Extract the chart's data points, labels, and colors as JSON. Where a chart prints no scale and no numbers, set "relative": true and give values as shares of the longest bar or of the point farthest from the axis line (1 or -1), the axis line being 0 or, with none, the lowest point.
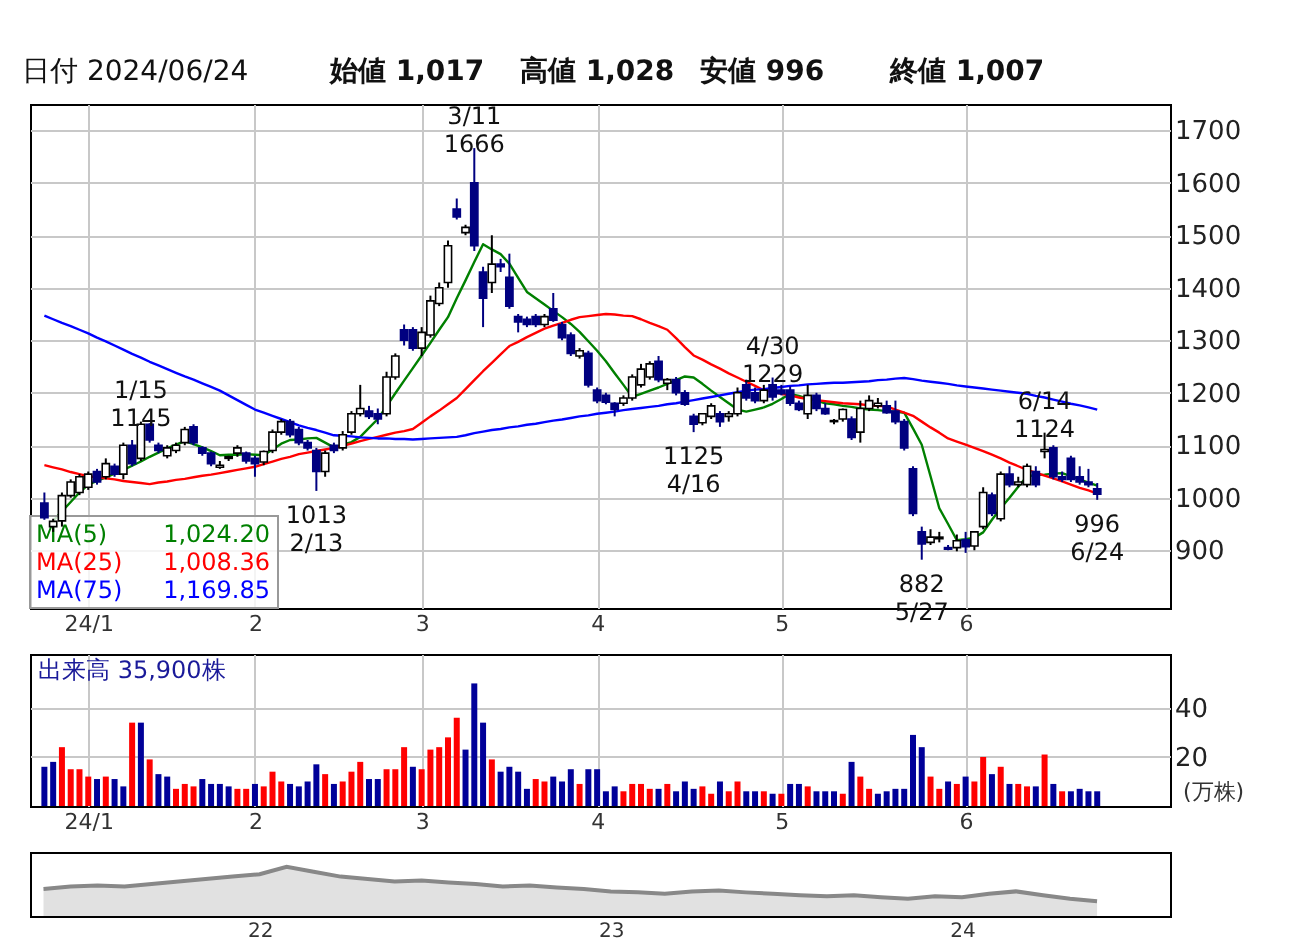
{
  "chart_data": [
    {
      "type": "candlestick",
      "title": "日付 2024/06/24",
      "categories": [
        null,
        null,
        null,
        null,
        null,
        "24/1",
        null,
        null,
        null,
        null,
        null,
        null,
        null,
        null,
        null,
        null,
        null,
        null,
        null,
        null,
        null,
        null,
        null,
        null,
        "2",
        null,
        null,
        null,
        null,
        null,
        null,
        null,
        null,
        null,
        null,
        null,
        null,
        null,
        null,
        null,
        null,
        null,
        null,
        "3",
        null,
        null,
        null,
        null,
        null,
        null,
        null,
        null,
        null,
        null,
        null,
        null,
        null,
        null,
        null,
        null,
        null,
        null,
        null,
        "4",
        null,
        null,
        null,
        null,
        null,
        null,
        null,
        null,
        null,
        null,
        null,
        null,
        null,
        null,
        null,
        null,
        null,
        null,
        null,
        null,
        "5",
        null,
        null,
        null,
        null,
        null,
        null,
        null,
        null,
        null,
        null,
        null,
        null,
        null,
        null,
        null,
        null,
        null,
        null,
        null,
        null,
        "6",
        null,
        null,
        null,
        null,
        null,
        null,
        null,
        null,
        null,
        null,
        null,
        null,
        null,
        null,
        null
      ],
      "ohlc": [
        [
          990,
          1010,
          958,
          962
        ],
        [
          945,
          960,
          935,
          955
        ],
        [
          956,
          1010,
          945,
          1004
        ],
        [
          1004,
          1035,
          1000,
          1030
        ],
        [
          1010,
          1045,
          1005,
          1040
        ],
        [
          1020,
          1050,
          1015,
          1045
        ],
        [
          1050,
          1055,
          1025,
          1030
        ],
        [
          1040,
          1075,
          1035,
          1065
        ],
        [
          1060,
          1065,
          1040,
          1045
        ],
        [
          1045,
          1105,
          1035,
          1100
        ],
        [
          1100,
          1110,
          1060,
          1065
        ],
        [
          1075,
          1145,
          1070,
          1140
        ],
        [
          1140,
          1142,
          1105,
          1110
        ],
        [
          1100,
          1105,
          1085,
          1090
        ],
        [
          1080,
          1100,
          1075,
          1095
        ],
        [
          1090,
          1105,
          1085,
          1100
        ],
        [
          1105,
          1135,
          1100,
          1130
        ],
        [
          1135,
          1140,
          1100,
          1105
        ],
        [
          1095,
          1098,
          1080,
          1085
        ],
        [
          1085,
          1088,
          1060,
          1065
        ],
        [
          1058,
          1070,
          1055,
          1062
        ],
        [
          1075,
          1080,
          1070,
          1078
        ],
        [
          1085,
          1100,
          1078,
          1095
        ],
        [
          1085,
          1088,
          1065,
          1070
        ],
        [
          1075,
          1080,
          1040,
          1065
        ],
        [
          1068,
          1090,
          1062,
          1088
        ],
        [
          1090,
          1130,
          1085,
          1125
        ],
        [
          1125,
          1150,
          1120,
          1145
        ],
        [
          1145,
          1150,
          1115,
          1120
        ],
        [
          1130,
          1135,
          1100,
          1105
        ],
        [
          1105,
          1110,
          1090,
          1095
        ],
        [
          1090,
          1095,
          1013,
          1050
        ],
        [
          1050,
          1090,
          1040,
          1085
        ],
        [
          1100,
          1105,
          1085,
          1090
        ],
        [
          1095,
          1127,
          1090,
          1120
        ],
        [
          1125,
          1165,
          1120,
          1160
        ],
        [
          1160,
          1215,
          1155,
          1170
        ],
        [
          1165,
          1175,
          1150,
          1155
        ],
        [
          1160,
          1170,
          1140,
          1150
        ],
        [
          1160,
          1240,
          1155,
          1230
        ],
        [
          1230,
          1275,
          1225,
          1270
        ],
        [
          1320,
          1330,
          1290,
          1300
        ],
        [
          1320,
          1325,
          1280,
          1285
        ],
        [
          1285,
          1325,
          1270,
          1315
        ],
        [
          1310,
          1385,
          1305,
          1375
        ],
        [
          1370,
          1410,
          1365,
          1400
        ],
        [
          1410,
          1490,
          1400,
          1480
        ],
        [
          1550,
          1570,
          1530,
          1535
        ],
        [
          1505,
          1520,
          1500,
          1515
        ],
        [
          1600,
          1666,
          1470,
          1480
        ],
        [
          1430,
          1440,
          1325,
          1380
        ],
        [
          1410,
          1500,
          1390,
          1445
        ],
        [
          1445,
          1455,
          1430,
          1440
        ],
        [
          1420,
          1465,
          1360,
          1365
        ],
        [
          1345,
          1350,
          1315,
          1335
        ],
        [
          1340,
          1345,
          1325,
          1330
        ],
        [
          1345,
          1350,
          1325,
          1330
        ],
        [
          1330,
          1350,
          1325,
          1345
        ],
        [
          1360,
          1390,
          1335,
          1338
        ],
        [
          1330,
          1335,
          1300,
          1305
        ],
        [
          1310,
          1315,
          1270,
          1275
        ],
        [
          1270,
          1285,
          1265,
          1280
        ],
        [
          1275,
          1280,
          1210,
          1215
        ],
        [
          1205,
          1210,
          1180,
          1185
        ],
        [
          1195,
          1200,
          1178,
          1182
        ],
        [
          1180,
          1182,
          1155,
          1168
        ],
        [
          1180,
          1195,
          1175,
          1190
        ],
        [
          1190,
          1235,
          1185,
          1230
        ],
        [
          1215,
          1255,
          1210,
          1245
        ],
        [
          1230,
          1260,
          1225,
          1255
        ],
        [
          1260,
          1270,
          1220,
          1225
        ],
        [
          1218,
          1228,
          1205,
          1225
        ],
        [
          1225,
          1230,
          1195,
          1200
        ],
        [
          1200,
          1205,
          1175,
          1178
        ],
        [
          1155,
          1160,
          1125,
          1140
        ],
        [
          1143,
          1160,
          1138,
          1160
        ],
        [
          1155,
          1180,
          1150,
          1175
        ],
        [
          1160,
          1165,
          1135,
          1145
        ],
        [
          1155,
          1165,
          1145,
          1160
        ],
        [
          1160,
          1210,
          1155,
          1200
        ],
        [
          1215,
          1225,
          1185,
          1190
        ],
        [
          1200,
          1210,
          1180,
          1185
        ],
        [
          1185,
          1215,
          1180,
          1205
        ],
        [
          1215,
          1229,
          1185,
          1192
        ],
        [
          1205,
          1215,
          1195,
          1198
        ],
        [
          1205,
          1212,
          1175,
          1180
        ],
        [
          1180,
          1185,
          1165,
          1168
        ],
        [
          1160,
          1215,
          1150,
          1195
        ],
        [
          1195,
          1200,
          1165,
          1170
        ],
        [
          1170,
          1180,
          1158,
          1160
        ],
        [
          1145,
          1150,
          1140,
          1147
        ],
        [
          1150,
          1170,
          1145,
          1168
        ],
        [
          1150,
          1155,
          1110,
          1115
        ],
        [
          1125,
          1185,
          1105,
          1170
        ],
        [
          1170,
          1195,
          1165,
          1185
        ],
        [
          1175,
          1190,
          1170,
          1180
        ],
        [
          1175,
          1185,
          1160,
          1162
        ],
        [
          1165,
          1185,
          1140,
          1145
        ],
        [
          1145,
          1150,
          1090,
          1095
        ],
        [
          1055,
          1060,
          965,
          970
        ],
        [
          935,
          945,
          882,
          912
        ],
        [
          915,
          940,
          910,
          925
        ],
        [
          922,
          935,
          915,
          925
        ],
        [
          905,
          910,
          900,
          902
        ],
        [
          905,
          930,
          898,
          918
        ],
        [
          920,
          935,
          895,
          907
        ],
        [
          908,
          935,
          900,
          935
        ],
        [
          945,
          1020,
          940,
          1010
        ],
        [
          1005,
          1010,
          965,
          970
        ],
        [
          960,
          1050,
          955,
          1045
        ],
        [
          1045,
          1060,
          1020,
          1025
        ],
        [
          1025,
          1040,
          1020,
          1030
        ],
        [
          1025,
          1065,
          1020,
          1060
        ],
        [
          1050,
          1060,
          1020,
          1025
        ],
        [
          1088,
          1124,
          1075,
          1092
        ],
        [
          1095,
          1100,
          1035,
          1040
        ],
        [
          1040,
          1050,
          1030,
          1035
        ],
        [
          1075,
          1080,
          1030,
          1035
        ],
        [
          1040,
          1060,
          1025,
          1030
        ],
        [
          1030,
          1055,
          1020,
          1025
        ],
        [
          1017,
          1028,
          996,
          1007
        ]
      ],
      "series": [
        {
          "name": "MA(5)",
          "type": "line",
          "color": "#008000",
          "values": [
            null,
            956,
            974,
            992,
            1010,
            1025,
            1032,
            1039,
            1046,
            1053,
            1061,
            1069,
            1078,
            1086,
            1094,
            1101,
            1108,
            1102,
            1096,
            1089,
            1081,
            1082,
            1082,
            1083,
            1082,
            1081,
            1092,
            1103,
            1110,
            1111,
            1113,
            1114,
            1105,
            1096,
            1101,
            1106,
            1116,
            1133,
            1150,
            1174,
            1199,
            1223,
            1247,
            1271,
            1295,
            1320,
            1344,
            1380,
            1414,
            1449,
            1483,
            1473,
            1464,
            1446,
            1419,
            1392,
            1380,
            1368,
            1356,
            1344,
            1331,
            1316,
            1298,
            1280,
            1260,
            1237,
            1215,
            1192,
            1198,
            1204,
            1210,
            1217,
            1224,
            1231,
            1229,
            1217,
            1204,
            1192,
            1180,
            1168,
            1164,
            1168,
            1172,
            1179,
            1188,
            1198,
            1194,
            1189,
            1185,
            1180,
            1178,
            1175,
            1173,
            1170,
            1168,
            1167,
            1165,
            1164,
            1162,
            1132,
            1101,
            1041,
            980,
            950,
            919,
            921,
            924,
            934,
            958,
            980,
            1000,
            1021,
            1041,
            1043,
            1044,
            1046,
            1047,
            1041,
            1035,
            1029,
            1023
          ]
        },
        {
          "name": "MA(25)",
          "type": "line",
          "color": "#ff0000",
          "values": [
            1062,
            1058,
            1054,
            1049,
            1045,
            1041,
            1039,
            1037,
            1035,
            1032,
            1030,
            1028,
            1026,
            1029,
            1031,
            1034,
            1036,
            1039,
            1042,
            1044,
            1047,
            1050,
            1053,
            1056,
            1059,
            1064,
            1069,
            1074,
            1078,
            1083,
            1086,
            1089,
            1092,
            1095,
            1099,
            1103,
            1108,
            1112,
            1116,
            1120,
            1124,
            1127,
            1131,
            1143,
            1155,
            1166,
            1178,
            1190,
            1207,
            1224,
            1241,
            1257,
            1273,
            1289,
            1297,
            1306,
            1314,
            1322,
            1328,
            1333,
            1339,
            1344,
            1346,
            1348,
            1350,
            1349,
            1347,
            1346,
            1340,
            1333,
            1327,
            1320,
            1304,
            1287,
            1271,
            1263,
            1254,
            1246,
            1237,
            1229,
            1221,
            1213,
            1205,
            1202,
            1198,
            1195,
            1191,
            1188,
            1186,
            1184,
            1182,
            1180,
            1179,
            1178,
            1176,
            1175,
            1174,
            1168,
            1162,
            1156,
            1145,
            1134,
            1124,
            1113,
            1107,
            1101,
            1095,
            1089,
            1082,
            1075,
            1067,
            1060,
            1053,
            1048,
            1042,
            1037,
            1031,
            1025,
            1019,
            1014,
            1008
          ]
        },
        {
          "name": "MA(75)",
          "type": "line",
          "color": "#0000ff",
          "values": [
            1347,
            1340,
            1333,
            1327,
            1320,
            1313,
            1305,
            1298,
            1290,
            1282,
            1274,
            1267,
            1259,
            1252,
            1245,
            1238,
            1231,
            1225,
            1218,
            1211,
            1204,
            1195,
            1186,
            1177,
            1168,
            1162,
            1156,
            1150,
            1144,
            1138,
            1133,
            1129,
            1124,
            1119,
            1118,
            1117,
            1115,
            1114,
            1113,
            1113,
            1112,
            1112,
            1111,
            1112,
            1113,
            1114,
            1115,
            1116,
            1119,
            1123,
            1126,
            1129,
            1131,
            1134,
            1136,
            1139,
            1141,
            1144,
            1147,
            1149,
            1152,
            1155,
            1157,
            1160,
            1162,
            1164,
            1167,
            1169,
            1171,
            1173,
            1175,
            1178,
            1180,
            1183,
            1186,
            1189,
            1192,
            1195,
            1198,
            1201,
            1204,
            1206,
            1207,
            1209,
            1211,
            1213,
            1214,
            1216,
            1217,
            1218,
            1219,
            1219,
            1220,
            1221,
            1222,
            1224,
            1225,
            1227,
            1228,
            1226,
            1223,
            1221,
            1219,
            1217,
            1214,
            1212,
            1210,
            1208,
            1206,
            1204,
            1202,
            1200,
            1198,
            1194,
            1191,
            1187,
            1183,
            1179,
            1176,
            1172,
            1168
          ]
        }
      ],
      "annotations": [
        "始値 1,017",
        "高値 1,028",
        "安値 996",
        "終値 1,007",
        "1,024.20",
        "1,008.36",
        "1,169.85",
        {
          "text": "1/15\n1145",
          "y": 1145
        },
        {
          "text": "1013\n2/13",
          "y": 1013
        },
        {
          "text": "3/11\n1666",
          "y": 1666
        },
        {
          "text": "1125\n4/16",
          "y": 1125
        },
        {
          "text": "4/30\n1229",
          "y": 1229
        },
        {
          "text": "882\n5/27",
          "y": 882
        },
        {
          "text": "6/14\n1124",
          "y": 1124
        },
        {
          "text": "996\n6/24",
          "y": 996
        }
      ],
      "ylim": [
        790,
        1750
      ],
      "yticks": [
        900,
        1000,
        1100,
        1200,
        1300,
        1400,
        1500,
        1600,
        1700
      ],
      "grid": true,
      "legend": "bottom left"
    },
    {
      "type": "bar",
      "ylabel": "(万株)",
      "annotations": [
        "出来高 35,900株"
      ],
      "categories": [
        null,
        null,
        null,
        null,
        null,
        "24/1",
        null,
        null,
        null,
        null,
        null,
        null,
        null,
        null,
        null,
        null,
        null,
        null,
        null,
        null,
        null,
        null,
        null,
        null,
        "2",
        null,
        null,
        null,
        null,
        null,
        null,
        null,
        null,
        null,
        null,
        null,
        null,
        null,
        null,
        null,
        null,
        null,
        null,
        "3",
        null,
        null,
        null,
        null,
        null,
        null,
        null,
        null,
        null,
        null,
        null,
        null,
        null,
        null,
        null,
        null,
        null,
        null,
        null,
        "4",
        null,
        null,
        null,
        null,
        null,
        null,
        null,
        null,
        null,
        null,
        null,
        null,
        null,
        null,
        null,
        null,
        null,
        null,
        null,
        null,
        "5",
        null,
        null,
        null,
        null,
        null,
        null,
        null,
        null,
        null,
        null,
        null,
        null,
        null,
        null,
        null,
        null,
        null,
        null,
        null,
        null,
        "6",
        null,
        null,
        null,
        null,
        null,
        null,
        null,
        null,
        null,
        null,
        null,
        null,
        null,
        null,
        null
      ],
      "values": [
        16,
        18,
        24,
        15,
        15,
        12,
        11,
        12,
        11,
        8,
        34,
        34,
        19,
        13,
        12,
        7,
        9,
        8,
        11,
        9,
        9,
        8,
        7,
        7,
        9,
        8,
        14,
        10,
        9,
        8,
        10,
        17,
        13,
        9,
        10,
        14,
        18,
        11,
        11,
        15,
        15,
        24,
        16,
        15,
        23,
        24,
        28,
        36,
        23,
        50,
        34,
        19,
        14,
        16,
        14,
        7,
        11,
        10,
        12,
        10,
        15,
        9,
        15,
        15,
        6,
        8,
        6,
        9,
        9,
        7,
        7,
        9,
        6,
        10,
        7,
        8,
        5,
        10,
        6,
        10,
        6,
        6,
        6,
        5,
        5,
        9,
        9,
        8,
        6,
        6,
        6,
        5,
        18,
        12,
        7,
        5,
        6,
        7,
        7,
        29,
        24,
        12,
        7,
        10,
        9,
        12,
        10,
        20,
        13,
        16,
        9,
        9,
        8,
        8,
        21,
        9,
        6,
        6,
        7,
        6,
        6
      ],
      "colors": [
        "#000099",
        "#000099",
        "#ff0000",
        "#ff0000",
        "#ff0000",
        "#ff0000",
        "#000099",
        "#ff0000",
        "#000099",
        "#000099",
        "#ff0000",
        "#000099",
        "#ff0000",
        "#000099",
        "#000099",
        "#ff0000",
        "#ff0000",
        "#ff0000",
        "#000099",
        "#000099",
        "#000099",
        "#000099",
        "#ff0000",
        "#ff0000",
        "#000099",
        "#ff0000",
        "#ff0000",
        "#ff0000",
        "#000099",
        "#000099",
        "#000099",
        "#000099",
        "#ff0000",
        "#000099",
        "#ff0000",
        "#ff0000",
        "#ff0000",
        "#000099",
        "#000099",
        "#ff0000",
        "#ff0000",
        "#ff0000",
        "#000099",
        "#ff0000",
        "#ff0000",
        "#ff0000",
        "#ff0000",
        "#ff0000",
        "#000099",
        "#000099",
        "#000099",
        "#ff0000",
        "#000099",
        "#000099",
        "#000099",
        "#000099",
        "#ff0000",
        "#ff0000",
        "#000099",
        "#000099",
        "#000099",
        "#ff0000",
        "#000099",
        "#000099",
        "#000099",
        "#000099",
        "#ff0000",
        "#ff0000",
        "#ff0000",
        "#ff0000",
        "#000099",
        "#ff0000",
        "#000099",
        "#000099",
        "#000099",
        "#ff0000",
        "#ff0000",
        "#000099",
        "#ff0000",
        "#ff0000",
        "#000099",
        "#000099",
        "#ff0000",
        "#000099",
        "#ff0000",
        "#000099",
        "#000099",
        "#ff0000",
        "#000099",
        "#000099",
        "#000099",
        "#ff0000",
        "#000099",
        "#ff0000",
        "#ff0000",
        "#000099",
        "#000099",
        "#000099",
        "#000099",
        "#000099",
        "#000099",
        "#ff0000",
        "#ff0000",
        "#000099",
        "#ff0000",
        "#000099",
        "#ff0000",
        "#ff0000",
        "#000099",
        "#ff0000",
        "#000099",
        "#ff0000",
        "#ff0000",
        "#000099",
        "#ff0000",
        "#000099",
        "#ff0000",
        "#000099",
        "#000099",
        "#000099",
        "#000099"
      ],
      "ylim": [
        0,
        62
      ],
      "yticks": [
        20,
        40
      ],
      "grid": true
    },
    {
      "type": "area",
      "relative": true,
      "color": "#888888",
      "tick_labels": "x",
      "categories": [
        null,
        null,
        null,
        null,
        null,
        null,
        null,
        null,
        "22",
        null,
        null,
        null,
        null,
        null,
        null,
        null,
        null,
        null,
        null,
        null,
        null,
        "23",
        null,
        null,
        null,
        null,
        null,
        null,
        null,
        null,
        null,
        null,
        null,
        null,
        "24",
        null,
        null,
        null,
        null,
        null
      ],
      "values": [
        0.55,
        0.6,
        0.62,
        0.6,
        0.65,
        0.7,
        0.75,
        0.8,
        0.85,
        1.0,
        0.9,
        0.8,
        0.75,
        0.7,
        0.72,
        0.68,
        0.65,
        0.6,
        0.62,
        0.58,
        0.55,
        0.5,
        0.48,
        0.45,
        0.5,
        0.52,
        0.48,
        0.45,
        0.42,
        0.4,
        0.42,
        0.38,
        0.35,
        0.4,
        0.38,
        0.45,
        0.5,
        0.42,
        0.35,
        0.3
      ]
    }
  ]
}
